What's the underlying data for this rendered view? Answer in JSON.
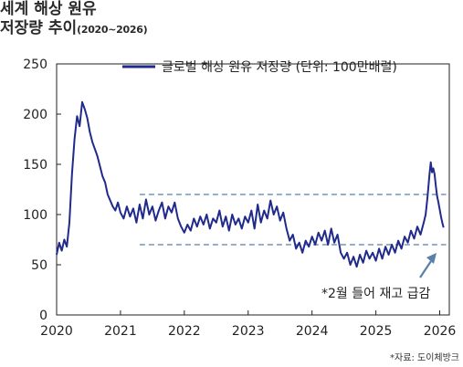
{
  "title": {
    "line1": "세계 해상 원유",
    "line2": "저장량 추이",
    "period": "(2020~2026)"
  },
  "source": "*자료: 도이체방크",
  "colors": {
    "series": "#1f2a8a",
    "reference": "#5b7fa8",
    "arrow": "#5b7fa8"
  },
  "chart_data": {
    "type": "line",
    "legend_position": "top",
    "grid": false,
    "xlim": [
      2020.0,
      2026.15
    ],
    "ylim": [
      0,
      250
    ],
    "x_ticks": [
      2020,
      2021,
      2022,
      2023,
      2024,
      2025,
      2026
    ],
    "x_tick_labels": [
      "2020",
      "2021",
      "2022",
      "2023",
      "2024",
      "2025",
      "2026"
    ],
    "y_ticks": [
      0,
      50,
      100,
      150,
      200,
      250
    ],
    "y_tick_labels": [
      "0",
      "50",
      "100",
      "150",
      "200",
      "250"
    ],
    "series": [
      {
        "name": "글로벌 해상 원유 저장량 (단위: 100만배럴)",
        "points": [
          [
            2020.0,
            60
          ],
          [
            2020.04,
            72
          ],
          [
            2020.08,
            64
          ],
          [
            2020.12,
            75
          ],
          [
            2020.16,
            68
          ],
          [
            2020.2,
            92
          ],
          [
            2020.24,
            140
          ],
          [
            2020.28,
            175
          ],
          [
            2020.32,
            198
          ],
          [
            2020.36,
            188
          ],
          [
            2020.4,
            212
          ],
          [
            2020.44,
            205
          ],
          [
            2020.48,
            196
          ],
          [
            2020.52,
            182
          ],
          [
            2020.56,
            172
          ],
          [
            2020.6,
            165
          ],
          [
            2020.64,
            158
          ],
          [
            2020.68,
            148
          ],
          [
            2020.72,
            138
          ],
          [
            2020.76,
            132
          ],
          [
            2020.8,
            120
          ],
          [
            2020.84,
            114
          ],
          [
            2020.88,
            108
          ],
          [
            2020.92,
            104
          ],
          [
            2020.96,
            112
          ],
          [
            2021.0,
            102
          ],
          [
            2021.05,
            96
          ],
          [
            2021.1,
            108
          ],
          [
            2021.15,
            98
          ],
          [
            2021.2,
            106
          ],
          [
            2021.25,
            92
          ],
          [
            2021.3,
            110
          ],
          [
            2021.35,
            96
          ],
          [
            2021.4,
            115
          ],
          [
            2021.45,
            100
          ],
          [
            2021.5,
            108
          ],
          [
            2021.55,
            94
          ],
          [
            2021.6,
            104
          ],
          [
            2021.65,
            112
          ],
          [
            2021.7,
            96
          ],
          [
            2021.75,
            108
          ],
          [
            2021.8,
            102
          ],
          [
            2021.85,
            112
          ],
          [
            2021.9,
            96
          ],
          [
            2021.95,
            88
          ],
          [
            2022.0,
            82
          ],
          [
            2022.05,
            90
          ],
          [
            2022.1,
            84
          ],
          [
            2022.15,
            96
          ],
          [
            2022.2,
            88
          ],
          [
            2022.25,
            98
          ],
          [
            2022.3,
            90
          ],
          [
            2022.35,
            100
          ],
          [
            2022.4,
            86
          ],
          [
            2022.45,
            96
          ],
          [
            2022.5,
            92
          ],
          [
            2022.55,
            104
          ],
          [
            2022.6,
            88
          ],
          [
            2022.65,
            98
          ],
          [
            2022.7,
            84
          ],
          [
            2022.75,
            100
          ],
          [
            2022.8,
            90
          ],
          [
            2022.85,
            96
          ],
          [
            2022.9,
            86
          ],
          [
            2022.95,
            98
          ],
          [
            2023.0,
            92
          ],
          [
            2023.05,
            104
          ],
          [
            2023.1,
            86
          ],
          [
            2023.15,
            110
          ],
          [
            2023.2,
            92
          ],
          [
            2023.25,
            104
          ],
          [
            2023.3,
            96
          ],
          [
            2023.35,
            114
          ],
          [
            2023.4,
            100
          ],
          [
            2023.45,
            108
          ],
          [
            2023.5,
            94
          ],
          [
            2023.55,
            102
          ],
          [
            2023.6,
            86
          ],
          [
            2023.65,
            74
          ],
          [
            2023.7,
            80
          ],
          [
            2023.75,
            66
          ],
          [
            2023.8,
            72
          ],
          [
            2023.85,
            62
          ],
          [
            2023.9,
            74
          ],
          [
            2023.95,
            68
          ],
          [
            2024.0,
            78
          ],
          [
            2024.05,
            70
          ],
          [
            2024.1,
            82
          ],
          [
            2024.15,
            74
          ],
          [
            2024.2,
            84
          ],
          [
            2024.25,
            70
          ],
          [
            2024.3,
            86
          ],
          [
            2024.35,
            72
          ],
          [
            2024.4,
            80
          ],
          [
            2024.45,
            62
          ],
          [
            2024.5,
            56
          ],
          [
            2024.55,
            62
          ],
          [
            2024.6,
            50
          ],
          [
            2024.65,
            58
          ],
          [
            2024.7,
            48
          ],
          [
            2024.75,
            60
          ],
          [
            2024.8,
            52
          ],
          [
            2024.85,
            64
          ],
          [
            2024.9,
            56
          ],
          [
            2024.95,
            62
          ],
          [
            2025.0,
            54
          ],
          [
            2025.05,
            66
          ],
          [
            2025.1,
            56
          ],
          [
            2025.15,
            68
          ],
          [
            2025.2,
            60
          ],
          [
            2025.25,
            70
          ],
          [
            2025.3,
            62
          ],
          [
            2025.35,
            74
          ],
          [
            2025.4,
            66
          ],
          [
            2025.45,
            78
          ],
          [
            2025.5,
            72
          ],
          [
            2025.55,
            84
          ],
          [
            2025.6,
            76
          ],
          [
            2025.65,
            88
          ],
          [
            2025.7,
            80
          ],
          [
            2025.75,
            92
          ],
          [
            2025.78,
            100
          ],
          [
            2025.81,
            118
          ],
          [
            2025.84,
            140
          ],
          [
            2025.86,
            152
          ],
          [
            2025.88,
            142
          ],
          [
            2025.9,
            146
          ],
          [
            2025.92,
            140
          ],
          [
            2025.94,
            128
          ],
          [
            2025.96,
            118
          ],
          [
            2025.98,
            112
          ],
          [
            2026.0,
            105
          ],
          [
            2026.02,
            98
          ],
          [
            2026.04,
            92
          ],
          [
            2026.06,
            87
          ]
        ]
      }
    ],
    "reference_lines": [
      {
        "y": 120,
        "x_start": 2021.3,
        "x_end": 2026.1,
        "style": "dashed"
      },
      {
        "y": 70,
        "x_start": 2021.3,
        "x_end": 2026.1,
        "style": "dashed"
      }
    ],
    "annotation": {
      "text": "*2월 들어 재고 급감",
      "arrow_to": [
        2026.05,
        80
      ]
    }
  }
}
